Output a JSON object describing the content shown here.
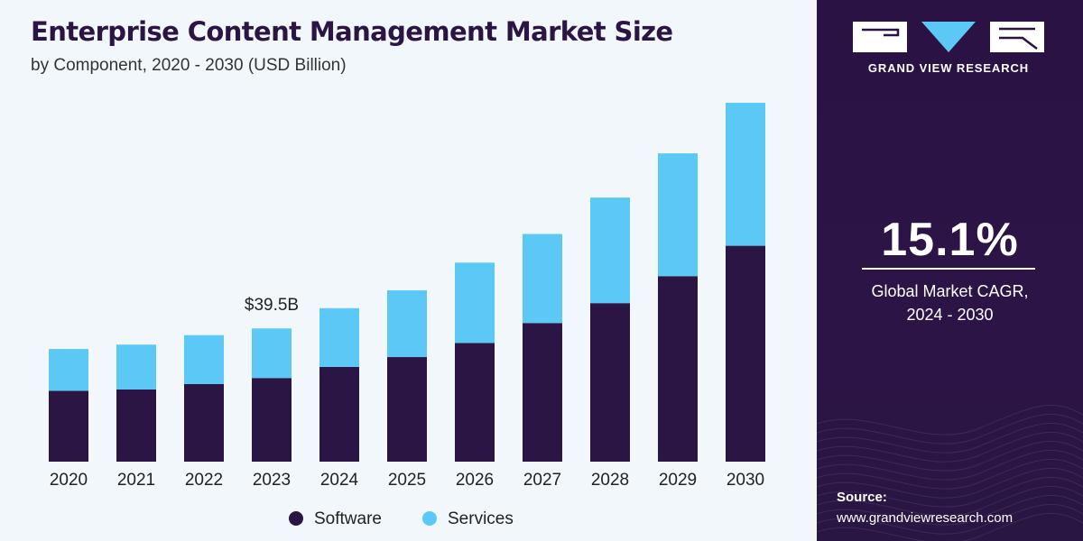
{
  "chart_data": {
    "type": "bar",
    "stacked": true,
    "title": "Enterprise Content Management Market Size",
    "subtitle": "by Component, 2020 - 2030 (USD Billion)",
    "categories": [
      "2020",
      "2021",
      "2022",
      "2023",
      "2024",
      "2025",
      "2026",
      "2027",
      "2028",
      "2029",
      "2030"
    ],
    "series": [
      {
        "name": "Software",
        "color": "#2b1544",
        "values": [
          21.0,
          21.4,
          23.0,
          24.8,
          28.1,
          31.0,
          35.2,
          41.1,
          47.0,
          55.0,
          64.0
        ]
      },
      {
        "name": "Services",
        "color": "#5bc8f5",
        "values": [
          12.4,
          13.3,
          14.5,
          14.7,
          17.4,
          19.8,
          23.8,
          26.4,
          31.3,
          36.4,
          42.4
        ]
      }
    ],
    "annotations": [
      {
        "category": "2023",
        "text": "$39.5B"
      }
    ],
    "ylim": [
      0,
      108
    ],
    "grid": false,
    "legend": "bottom"
  },
  "brand": {
    "name": "GRAND VIEW RESEARCH"
  },
  "cagr": {
    "value": "15.1%",
    "label_line1": "Global Market CAGR,",
    "label_line2": "2024 - 2030"
  },
  "source": {
    "label": "Source:",
    "url": "www.grandviewresearch.com"
  }
}
